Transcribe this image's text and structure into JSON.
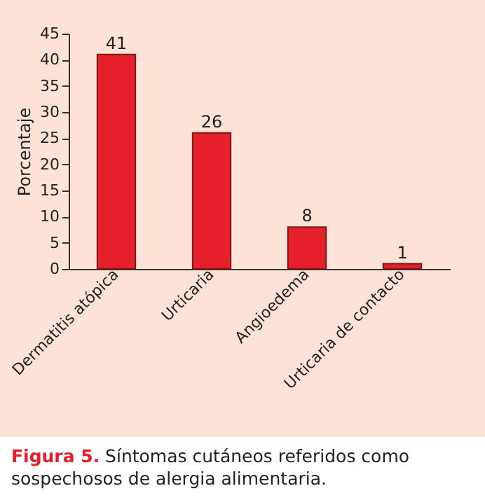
{
  "chart_data": {
    "type": "bar",
    "ylabel": "Porcentaje",
    "categories": [
      "Dermatitis atópica",
      "Urticaria",
      "Angioedema",
      "Urticaria de contacto"
    ],
    "values": [
      41,
      26,
      8,
      1
    ],
    "color": "#e5202b",
    "data_labels": true,
    "ylim": [
      0,
      45
    ],
    "yticks": [
      0,
      5,
      10,
      15,
      20,
      25,
      30,
      35,
      40,
      45
    ],
    "grid": false,
    "annotations": [
      "Figura 5. Síntomas cutáneos referidos como sospechosos de alergia alimentaria."
    ]
  }
}
